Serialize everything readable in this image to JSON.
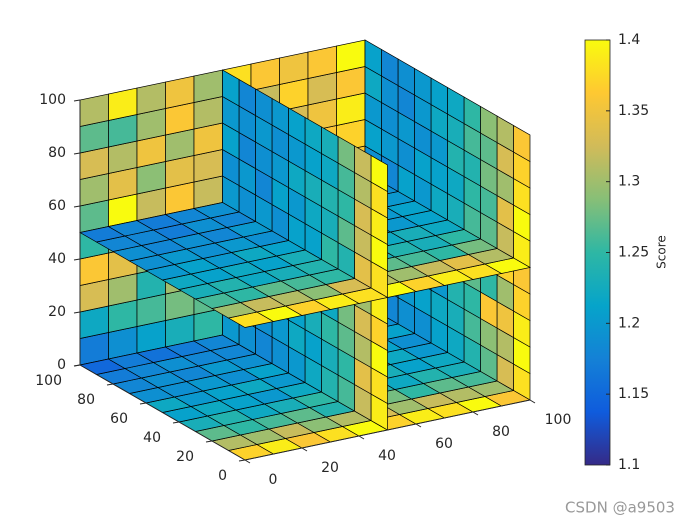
{
  "chart_data": {
    "type": "slice",
    "xlim": [
      0,
      100
    ],
    "ylim": [
      0,
      100
    ],
    "zlim": [
      0,
      100
    ],
    "xticks": [
      0,
      20,
      40,
      60,
      80,
      100
    ],
    "yticks": [
      0,
      20,
      40,
      60,
      80,
      100
    ],
    "zticks": [
      0,
      20,
      40,
      60,
      80,
      100
    ],
    "colorbar": {
      "label": "Score",
      "lim": [
        1.1,
        1.4
      ],
      "ticks": [
        1.1,
        1.15,
        1.2,
        1.25,
        1.3,
        1.35,
        1.4
      ]
    },
    "slices": [
      {
        "axis": "y",
        "at": 100,
        "values": [
          [
            1.17,
            1.22,
            1.33,
            1.36,
            1.25,
            1.27,
            1.3,
            1.33,
            1.27,
            1.31
          ],
          [
            1.19,
            1.25,
            1.3,
            1.34,
            1.28,
            1.4,
            1.34,
            1.31,
            1.26,
            1.39
          ],
          [
            1.21,
            1.26,
            1.24,
            1.29,
            1.37,
            1.32,
            1.29,
            1.35,
            1.3,
            1.31
          ],
          [
            1.23,
            1.28,
            1.3,
            1.33,
            1.35,
            1.36,
            1.34,
            1.3,
            1.36,
            1.35
          ],
          [
            1.25,
            1.27,
            1.31,
            1.29,
            1.38,
            1.32,
            1.33,
            1.35,
            1.31,
            1.3
          ],
          [
            1.26,
            1.3,
            1.33,
            1.35,
            1.31,
            1.34,
            1.37,
            1.3,
            1.34,
            1.38
          ],
          [
            1.28,
            1.32,
            1.3,
            1.36,
            1.34,
            1.33,
            1.31,
            1.36,
            1.32,
            1.36
          ],
          [
            1.29,
            1.31,
            1.35,
            1.33,
            1.37,
            1.36,
            1.34,
            1.33,
            1.37,
            1.35
          ],
          [
            1.3,
            1.34,
            1.33,
            1.36,
            1.35,
            1.38,
            1.36,
            1.35,
            1.33,
            1.36
          ],
          [
            1.32,
            1.33,
            1.36,
            1.35,
            1.38,
            1.36,
            1.37,
            1.39,
            1.36,
            1.4
          ]
        ]
      },
      {
        "axis": "x",
        "at": 100,
        "values": [
          [
            1.38,
            1.4,
            1.39,
            1.37,
            1.36,
            1.39,
            1.4,
            1.38,
            1.37,
            1.36
          ],
          [
            1.33,
            1.31,
            1.35,
            1.3,
            1.37,
            1.32,
            1.34,
            1.3,
            1.33,
            1.31
          ],
          [
            1.27,
            1.29,
            1.36,
            1.25,
            1.28,
            1.27,
            1.26,
            1.28,
            1.27,
            1.29
          ],
          [
            1.24,
            1.26,
            1.25,
            1.27,
            1.23,
            1.26,
            1.25,
            1.24,
            1.26,
            1.25
          ],
          [
            1.22,
            1.23,
            1.24,
            1.22,
            1.25,
            1.23,
            1.22,
            1.24,
            1.23,
            1.22
          ],
          [
            1.21,
            1.22,
            1.2,
            1.23,
            1.21,
            1.22,
            1.21,
            1.2,
            1.22,
            1.21
          ],
          [
            1.19,
            1.21,
            1.2,
            1.19,
            1.22,
            1.2,
            1.21,
            1.19,
            1.2,
            1.2
          ],
          [
            1.19,
            1.2,
            1.18,
            1.2,
            1.19,
            1.21,
            1.19,
            1.2,
            1.18,
            1.19
          ],
          [
            1.18,
            1.19,
            1.2,
            1.18,
            1.19,
            1.18,
            1.2,
            1.19,
            1.19,
            1.18
          ],
          [
            1.2,
            1.22,
            1.19,
            1.21,
            1.2,
            1.19,
            1.21,
            1.2,
            1.22,
            1.21
          ]
        ]
      },
      {
        "axis": "z",
        "at": 0,
        "values": [
          [
            1.37,
            1.31,
            1.27,
            1.23,
            1.21,
            1.22,
            1.19,
            1.18,
            1.17,
            1.15
          ],
          [
            1.39,
            1.3,
            1.25,
            1.24,
            1.22,
            1.2,
            1.19,
            1.19,
            1.18,
            1.17
          ],
          [
            1.36,
            1.32,
            1.26,
            1.22,
            1.21,
            1.21,
            1.2,
            1.18,
            1.19,
            1.16
          ],
          [
            1.38,
            1.29,
            1.27,
            1.23,
            1.2,
            1.22,
            1.19,
            1.2,
            1.18,
            1.17
          ],
          [
            1.4,
            1.31,
            1.24,
            1.25,
            1.22,
            1.2,
            1.21,
            1.19,
            1.18,
            1.18
          ],
          [
            1.37,
            1.33,
            1.26,
            1.23,
            1.21,
            1.21,
            1.2,
            1.19,
            1.19,
            1.18
          ],
          [
            1.39,
            1.3,
            1.28,
            1.24,
            1.22,
            1.2,
            1.19,
            1.2,
            1.18,
            1.19
          ],
          [
            1.38,
            1.32,
            1.25,
            1.22,
            1.23,
            1.21,
            1.2,
            1.19,
            1.19,
            1.18
          ],
          [
            1.4,
            1.31,
            1.27,
            1.24,
            1.21,
            1.22,
            1.21,
            1.2,
            1.18,
            1.19
          ],
          [
            1.36,
            1.3,
            1.26,
            1.23,
            1.22,
            1.2,
            1.19,
            1.21,
            1.19,
            1.2
          ]
        ]
      },
      {
        "axis": "x",
        "at": 50,
        "values": [
          [
            1.39,
            1.38,
            1.4,
            1.37,
            1.39,
            1.38,
            1.4,
            1.39,
            1.38,
            1.4
          ],
          [
            1.32,
            1.34,
            1.31,
            1.33,
            1.3,
            1.34,
            1.32,
            1.33,
            1.31,
            1.32
          ],
          [
            1.26,
            1.25,
            1.27,
            1.28,
            1.26,
            1.24,
            1.27,
            1.25,
            1.26,
            1.28
          ],
          [
            1.24,
            1.23,
            1.25,
            1.22,
            1.24,
            1.25,
            1.23,
            1.24,
            1.22,
            1.23
          ],
          [
            1.22,
            1.21,
            1.23,
            1.24,
            1.22,
            1.21,
            1.22,
            1.23,
            1.21,
            1.22
          ],
          [
            1.2,
            1.22,
            1.21,
            1.2,
            1.23,
            1.21,
            1.2,
            1.22,
            1.2,
            1.21
          ],
          [
            1.19,
            1.2,
            1.22,
            1.19,
            1.2,
            1.19,
            1.21,
            1.2,
            1.19,
            1.2
          ],
          [
            1.18,
            1.19,
            1.2,
            1.21,
            1.19,
            1.2,
            1.18,
            1.19,
            1.2,
            1.19
          ],
          [
            1.19,
            1.18,
            1.19,
            1.2,
            1.18,
            1.19,
            1.2,
            1.18,
            1.19,
            1.18
          ],
          [
            1.2,
            1.21,
            1.19,
            1.2,
            1.21,
            1.2,
            1.19,
            1.21,
            1.2,
            1.21
          ]
        ]
      },
      {
        "axis": "z",
        "at": 50,
        "values": [
          [
            1.38,
            1.3,
            1.26,
            1.23,
            1.22,
            1.2,
            1.19,
            1.19,
            1.18,
            1.17
          ],
          [
            1.4,
            1.32,
            1.25,
            1.24,
            1.21,
            1.21,
            1.2,
            1.18,
            1.18,
            1.18
          ],
          [
            1.37,
            1.31,
            1.27,
            1.22,
            1.22,
            1.2,
            1.19,
            1.19,
            1.17,
            1.17
          ],
          [
            1.39,
            1.29,
            1.26,
            1.23,
            1.21,
            1.22,
            1.2,
            1.18,
            1.19,
            1.18
          ],
          [
            1.38,
            1.33,
            1.25,
            1.24,
            1.23,
            1.21,
            1.19,
            1.2,
            1.18,
            1.19
          ],
          [
            1.4,
            1.31,
            1.28,
            1.25,
            1.22,
            1.2,
            1.21,
            1.19,
            1.19,
            1.18
          ],
          [
            1.37,
            1.3,
            1.27,
            1.23,
            1.21,
            1.22,
            1.2,
            1.2,
            1.18,
            1.19
          ],
          [
            1.39,
            1.32,
            1.26,
            1.24,
            1.22,
            1.21,
            1.19,
            1.19,
            1.2,
            1.18
          ],
          [
            1.38,
            1.34,
            1.25,
            1.23,
            1.23,
            1.2,
            1.2,
            1.21,
            1.19,
            1.19
          ],
          [
            1.4,
            1.31,
            1.28,
            1.25,
            1.22,
            1.21,
            1.21,
            1.2,
            1.19,
            1.2
          ]
        ]
      }
    ]
  },
  "watermark": "CSDN @a9503"
}
